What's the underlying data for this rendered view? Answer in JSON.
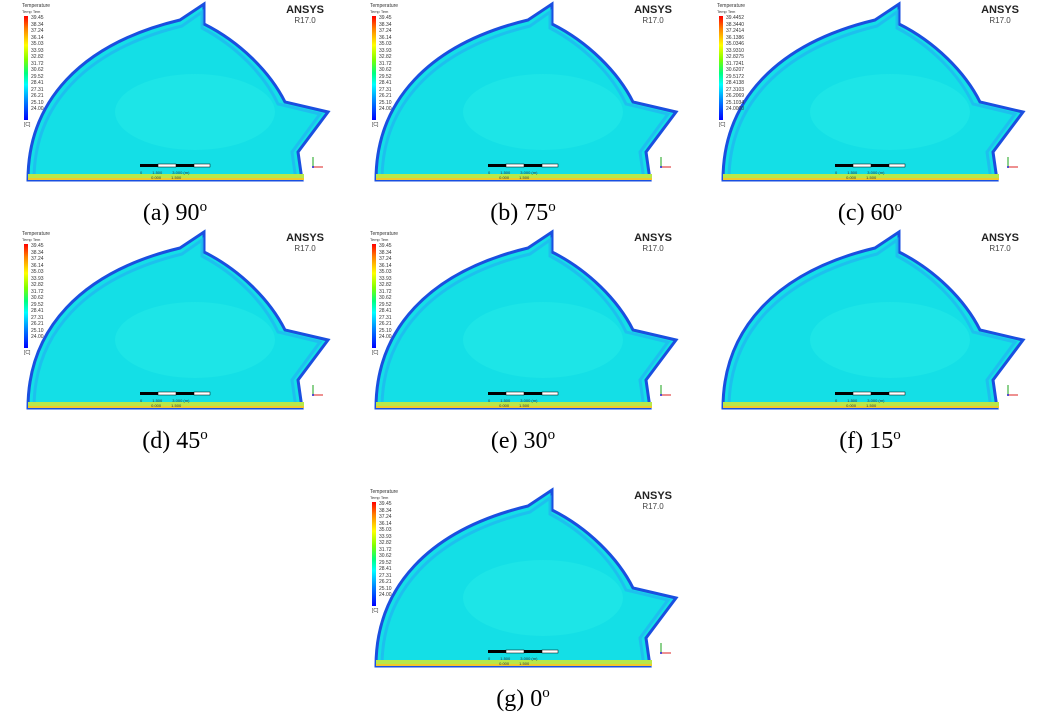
{
  "panels": [
    {
      "caption": "(a) 90",
      "sup": "o",
      "legend_values": [
        "39.45",
        "38.34",
        "37.24",
        "36.14",
        "35.03",
        "33.93",
        "32.82",
        "31.72",
        "30.62",
        "29.52",
        "28.41",
        "27.31",
        "26.21",
        "25.10",
        "24.00"
      ]
    },
    {
      "caption": "(b) 75",
      "sup": "o",
      "legend_values": [
        "39.45",
        "38.34",
        "37.24",
        "36.14",
        "35.03",
        "33.93",
        "32.82",
        "31.72",
        "30.62",
        "29.52",
        "28.41",
        "27.31",
        "26.21",
        "25.10",
        "24.00"
      ]
    },
    {
      "caption": "(c) 60",
      "sup": "o",
      "legend_values": [
        "39.4452",
        "38.3440",
        "37.2414",
        "36.1386",
        "35.0346",
        "33.9310",
        "32.8275",
        "31.7241",
        "30.6207",
        "29.5172",
        "28.4138",
        "27.3103",
        "26.2069",
        "25.1034",
        "24.0000"
      ]
    },
    {
      "caption": "(d) 45",
      "sup": "o",
      "legend_values": [
        "39.45",
        "38.34",
        "37.24",
        "36.14",
        "35.03",
        "33.93",
        "32.82",
        "31.72",
        "30.62",
        "29.52",
        "28.41",
        "27.31",
        "26.21",
        "25.10",
        "24.00"
      ]
    },
    {
      "caption": "(e) 30",
      "sup": "o",
      "legend_values": [
        "39.45",
        "38.34",
        "37.24",
        "36.14",
        "35.03",
        "33.93",
        "32.82",
        "31.72",
        "30.62",
        "29.52",
        "28.41",
        "27.31",
        "26.21",
        "25.10",
        "24.00"
      ]
    },
    {
      "caption": "(f) 15",
      "sup": "o",
      "legend_values": []
    },
    {
      "caption": "(g) 0",
      "sup": "o",
      "legend_values": [
        "39.45",
        "38.34",
        "37.24",
        "36.14",
        "35.03",
        "33.93",
        "32.82",
        "31.72",
        "30.62",
        "29.52",
        "28.41",
        "27.31",
        "26.21",
        "25.10",
        "24.00"
      ]
    }
  ],
  "legend_title": "Temperature",
  "legend_subtitle": "Temp Tem",
  "legend_unit": "[C]",
  "brand": "ANSYS",
  "version": "R17.0",
  "scale": {
    "t0": "0",
    "t1": "1.500",
    "t2": "3.000 (m)",
    "b1": "0.000",
    "b2": "1.500"
  },
  "colors": {
    "field": "#14dfe6",
    "field_light": "#2ff0e8",
    "outer_edge": "#1a4fe0",
    "mid_edge": "#1fb8f0",
    "floor": "#b8e84a",
    "floor_edge": "#f2c82a"
  }
}
